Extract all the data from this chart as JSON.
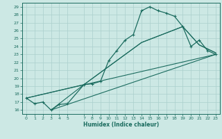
{
  "bg_color": "#cce8e4",
  "line_color": "#1a6b5e",
  "grid_color": "#aacfcc",
  "xlabel": "Humidex (Indice chaleur)",
  "xlim": [
    -0.5,
    23.5
  ],
  "ylim": [
    15.5,
    29.5
  ],
  "xticks": [
    0,
    1,
    2,
    3,
    4,
    5,
    7,
    8,
    9,
    10,
    11,
    12,
    13,
    14,
    15,
    16,
    17,
    18,
    19,
    20,
    21,
    22,
    23
  ],
  "xtick_labels": [
    "0",
    "1",
    "2",
    "3",
    "4",
    "5",
    "7",
    "8",
    "9",
    "10",
    "11",
    "12",
    "13",
    "14",
    "15",
    "16",
    "17",
    "18",
    "19",
    "20",
    "21",
    "22",
    "23"
  ],
  "yticks": [
    16,
    17,
    18,
    19,
    20,
    21,
    22,
    23,
    24,
    25,
    26,
    27,
    28,
    29
  ],
  "upper_curve_x": [
    0,
    1,
    2,
    3,
    4,
    5,
    7,
    8,
    9,
    10,
    11,
    12,
    13,
    14,
    15,
    16,
    17,
    18,
    19,
    20,
    21,
    22,
    23
  ],
  "upper_curve_y": [
    17.5,
    16.8,
    17.0,
    16.0,
    16.7,
    16.8,
    19.2,
    19.3,
    19.6,
    22.2,
    23.5,
    24.8,
    25.5,
    28.5,
    29.0,
    28.5,
    28.2,
    27.8,
    26.5,
    24.0,
    24.8,
    23.5,
    23.0
  ],
  "line1_x": [
    0,
    7,
    14,
    19,
    21,
    22,
    23
  ],
  "line1_y": [
    17.5,
    19.2,
    24.5,
    26.5,
    24.2,
    23.7,
    23.2
  ],
  "line2_x": [
    3,
    7,
    14,
    19,
    21,
    22,
    23
  ],
  "line2_y": [
    16.0,
    19.2,
    24.5,
    26.5,
    24.2,
    23.7,
    23.2
  ],
  "line3_x": [
    0,
    23
  ],
  "line3_y": [
    17.5,
    23.0
  ],
  "line4_x": [
    3,
    23
  ],
  "line4_y": [
    16.0,
    23.0
  ]
}
